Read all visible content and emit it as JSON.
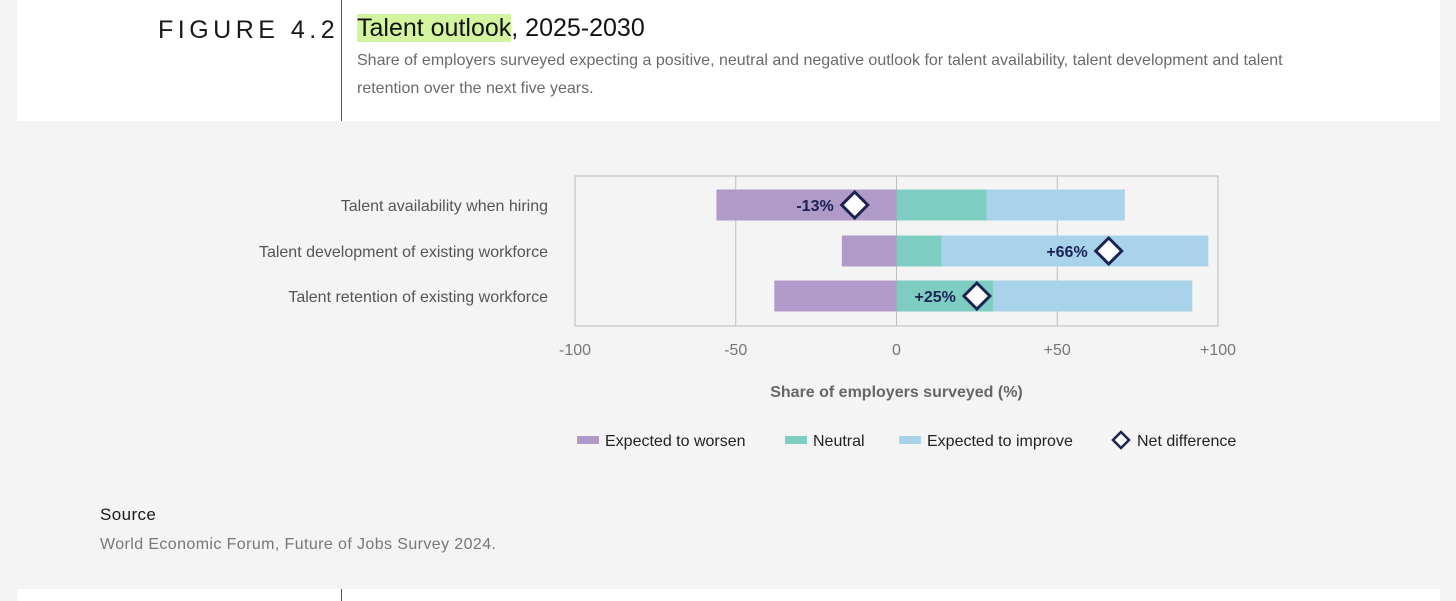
{
  "figure_label": "FIGURE 4.2",
  "title_highlight": "Talent outlook",
  "title_rest": ", 2025-2030",
  "subtitle": "Share of employers surveyed expecting a positive, neutral and negative outlook for talent availability, talent development and talent retention over the next five years.",
  "source_label": "Source",
  "source_text": "World Economic Forum, Future of Jobs Survey 2024.",
  "colors": {
    "worsen": "#b09ac7",
    "neutral": "#7ecdc3",
    "improve": "#a9d3ea",
    "net": "#1a2352",
    "grid": "#bdbdbd",
    "label": "#555555"
  },
  "chart_data": {
    "type": "bar",
    "orientation": "horizontal-diverging",
    "categories": [
      "Talent availability when hiring",
      "Talent development of existing workforce",
      "Talent retention of existing workforce"
    ],
    "series": [
      {
        "name": "Expected to worsen",
        "values": [
          -56,
          -17,
          -38
        ]
      },
      {
        "name": "Neutral",
        "values": [
          28,
          14,
          30
        ]
      },
      {
        "name": "Expected to improve",
        "values": [
          43,
          83,
          62
        ]
      }
    ],
    "net_difference": {
      "name": "Net difference",
      "values": [
        -13,
        66,
        25
      ],
      "labels": [
        "-13%",
        "+66%",
        "+25%"
      ]
    },
    "xlim": [
      -100,
      100
    ],
    "xticks": [
      -100,
      -50,
      0,
      50,
      100
    ],
    "xtick_labels": [
      "-100",
      "-50",
      "0",
      "+50",
      "+100"
    ],
    "xlabel": "Share of employers surveyed (%)",
    "grid": true,
    "legend_placement": "bottom"
  }
}
